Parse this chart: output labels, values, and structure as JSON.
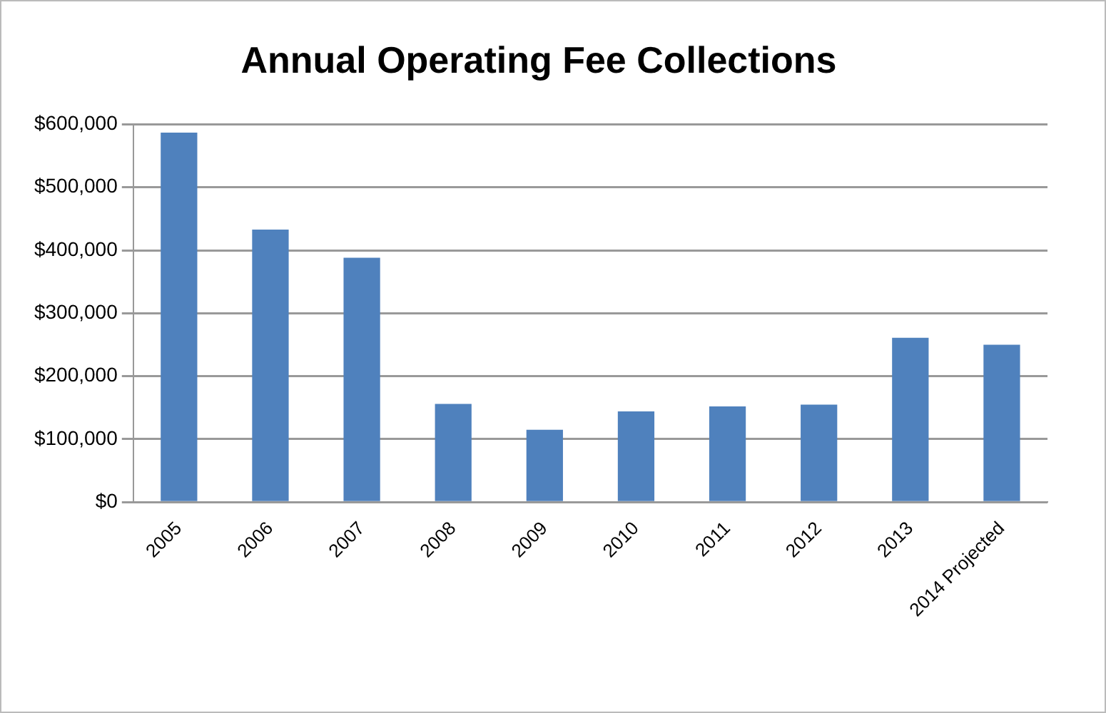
{
  "chart_data": {
    "type": "bar",
    "title": "Annual Operating Fee Collections",
    "categories": [
      "2005",
      "2006",
      "2007",
      "2008",
      "2009",
      "2010",
      "2011",
      "2012",
      "2013",
      "2014 Projected"
    ],
    "values": [
      587000,
      433000,
      388000,
      156000,
      115000,
      144000,
      152000,
      155000,
      261000,
      250000
    ],
    "color": "#4f81bd",
    "ylim": [
      0,
      600000
    ],
    "yticks": [
      {
        "value": 0,
        "label": "$0"
      },
      {
        "value": 100000,
        "label": "$100,000"
      },
      {
        "value": 200000,
        "label": "$200,000"
      },
      {
        "value": 300000,
        "label": "$300,000"
      },
      {
        "value": 400000,
        "label": "$400,000"
      },
      {
        "value": 500000,
        "label": "$500,000"
      },
      {
        "value": 600000,
        "label": "$600,000"
      }
    ],
    "grid": "y"
  }
}
